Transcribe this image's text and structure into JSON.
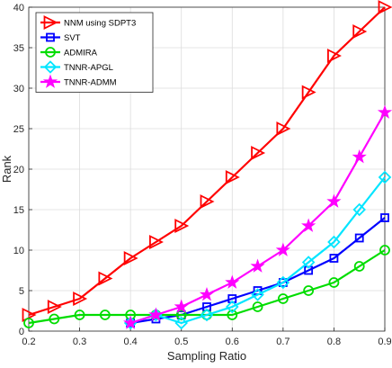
{
  "chart_data": {
    "type": "line",
    "title": "",
    "xlabel": "Sampling Ratio",
    "ylabel": "Rank",
    "xlim": [
      0.2,
      0.9
    ],
    "ylim": [
      0,
      40
    ],
    "xticks": [
      0.2,
      0.3,
      0.4,
      0.5,
      0.6,
      0.7,
      0.8,
      0.9
    ],
    "yticks": [
      0,
      5,
      10,
      15,
      20,
      25,
      30,
      35,
      40
    ],
    "xtick_labels": [
      "0.2",
      "0.3",
      "0.4",
      "0.5",
      "0.6",
      "0.7",
      "0.8",
      "0.9"
    ],
    "ytick_labels": [
      "0",
      "5",
      "10",
      "15",
      "20",
      "25",
      "30",
      "35",
      "40"
    ],
    "grid": true,
    "legend_position": "top-left",
    "series": [
      {
        "name": "NNM using SDPT3",
        "color": "#ff0000",
        "marker": "triangle-right",
        "x": [
          0.2,
          0.25,
          0.3,
          0.35,
          0.4,
          0.45,
          0.5,
          0.55,
          0.6,
          0.65,
          0.7,
          0.75,
          0.8,
          0.85,
          0.9
        ],
        "y": [
          2,
          3,
          4,
          6.5,
          9,
          11,
          13,
          16,
          19,
          22,
          25,
          29.5,
          34,
          37,
          40
        ]
      },
      {
        "name": "SVT",
        "color": "#0000ff",
        "marker": "square",
        "x": [
          0.4,
          0.45,
          0.5,
          0.55,
          0.6,
          0.65,
          0.7,
          0.75,
          0.8,
          0.85,
          0.9
        ],
        "y": [
          1,
          1.5,
          2,
          3,
          4,
          5,
          6,
          7.5,
          9,
          11.5,
          14
        ]
      },
      {
        "name": "ADMIRA",
        "color": "#00dd00",
        "marker": "circle",
        "x": [
          0.2,
          0.25,
          0.3,
          0.35,
          0.4,
          0.45,
          0.5,
          0.55,
          0.6,
          0.65,
          0.7,
          0.75,
          0.8,
          0.85,
          0.9
        ],
        "y": [
          1,
          1.5,
          2,
          2,
          2,
          2,
          2,
          2,
          2,
          3,
          4,
          5,
          6,
          8,
          10
        ]
      },
      {
        "name": "TNNR-APGL",
        "color": "#00e5ff",
        "marker": "diamond",
        "x": [
          0.4,
          0.45,
          0.5,
          0.55,
          0.6,
          0.65,
          0.7,
          0.75,
          0.8,
          0.85,
          0.9
        ],
        "y": [
          1,
          2,
          1,
          2,
          3,
          4.5,
          6,
          8.5,
          11,
          15,
          19
        ]
      },
      {
        "name": "TNNR-ADMM",
        "color": "#ff00ff",
        "marker": "star",
        "x": [
          0.4,
          0.45,
          0.5,
          0.55,
          0.6,
          0.65,
          0.7,
          0.75,
          0.8,
          0.85,
          0.9
        ],
        "y": [
          1,
          2,
          3,
          4.5,
          6,
          8,
          10,
          13,
          16,
          21.5,
          27
        ]
      }
    ]
  }
}
